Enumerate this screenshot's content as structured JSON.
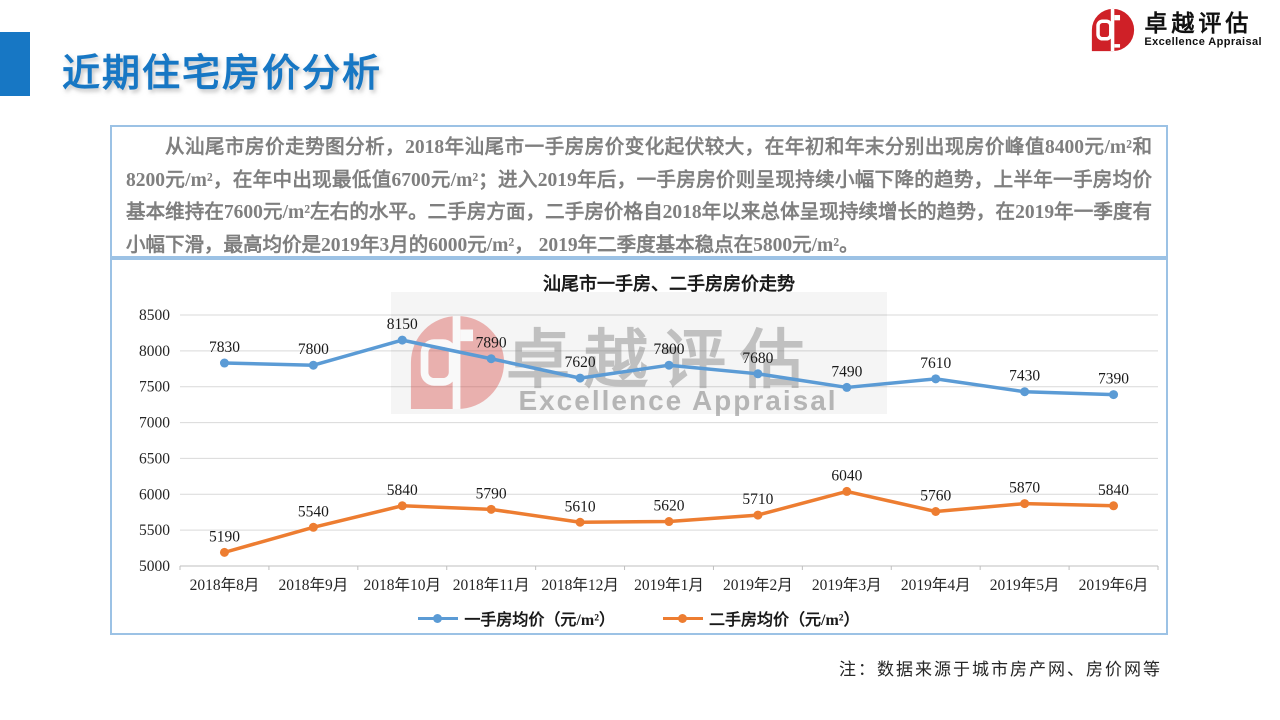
{
  "header": {
    "title": "近期住宅房价分析",
    "logo": {
      "cn": "卓越评估",
      "en": "Excellence Appraisal",
      "color": "#CF2027"
    }
  },
  "summary": {
    "text": "从汕尾市房价走势图分析，2018年汕尾市一手房房价变化起伏较大，在年初和年末分别出现房价峰值8400元/m²和8200元/m²，在年中出现最低值6700元/m²；进入2019年后，一手房房价则呈现持续小幅下降的趋势，上半年一手房均价基本维持在7600元/m²左右的水平。二手房方面，二手房价格自2018年以来总体呈现持续增长的趋势，在2019年一季度有小幅下滑，最高均价是2019年3月的6000元/m²， 2019年二季度基本稳点在5800元/m²。"
  },
  "chart_data": {
    "type": "line",
    "title": "汕尾市一手房、二手房房价走势",
    "categories": [
      "2018年8月",
      "2018年9月",
      "2018年10月",
      "2018年11月",
      "2018年12月",
      "2019年1月",
      "2019年2月",
      "2019年3月",
      "2019年4月",
      "2019年5月",
      "2019年6月"
    ],
    "series": [
      {
        "name": "一手房均价（元/m²）",
        "color": "#5B9BD5",
        "values": [
          7830,
          7800,
          8150,
          7890,
          7620,
          7800,
          7680,
          7490,
          7610,
          7430,
          7390
        ]
      },
      {
        "name": "二手房均价（元/m²）",
        "color": "#ED7D31",
        "values": [
          5190,
          5540,
          5840,
          5790,
          5610,
          5620,
          5710,
          6040,
          5760,
          5870,
          5840
        ]
      }
    ],
    "ylabel": "",
    "xlabel": "",
    "ylim": [
      5000,
      8500
    ],
    "ytick_step": 500,
    "grid": true,
    "legend_position": "bottom",
    "gridline_color": "#D9D9D9",
    "axis_color": "#BFBFBF"
  },
  "watermark": {
    "cn": "卓越评估",
    "en": "Excellence Appraisal"
  },
  "footnote": "注：数据来源于城市房产网、房价网等",
  "colors": {
    "accent_blue": "#1777C4",
    "box_border": "#9CC2E5",
    "summary_text": "#7F7F7F"
  }
}
